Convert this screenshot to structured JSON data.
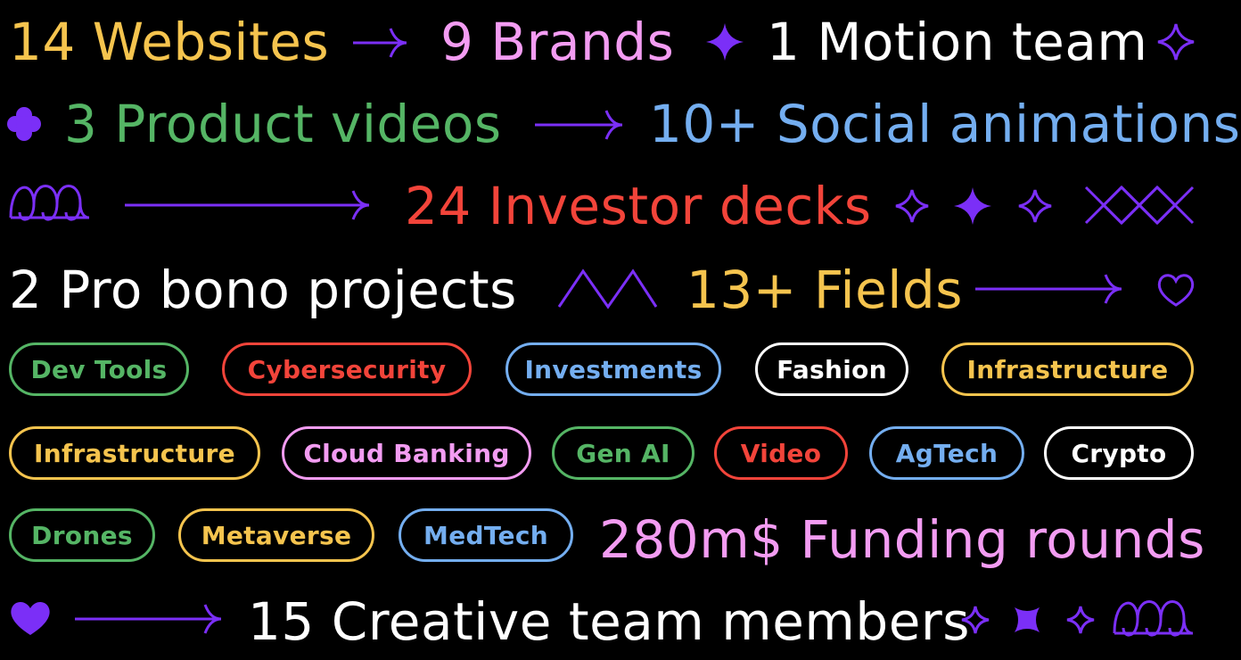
{
  "colors": {
    "purple": "#7b2ff7",
    "yellow": "#f5c44e",
    "pink": "#f39cf2",
    "white": "#ffffff",
    "green": "#55b565",
    "blue": "#74aef0",
    "red": "#f2443a"
  },
  "stats": {
    "websites": "14 Websites",
    "brands": "9 Brands",
    "motion_team": "1 Motion team",
    "product_videos": "3 Product videos",
    "social_animations": "10+ Social animations",
    "investor_decks": "24 Investor decks",
    "pro_bono": "2 Pro bono projects",
    "fields": "13+ Fields",
    "funding": "280m$ Funding rounds",
    "creative_team": "15 Creative team members"
  },
  "tags": {
    "row1": [
      "Dev Tools",
      "Cybersecurity",
      "Investments",
      "Fashion",
      "Infrastructure"
    ],
    "row2": [
      "Infrastructure",
      "Cloud Banking",
      "Gen AI",
      "Video",
      "AgTech",
      "Crypto"
    ],
    "row3": [
      "Drones",
      "Metaverse",
      "MedTech"
    ]
  },
  "icons": [
    "arrow-right-icon",
    "sparkle-icon",
    "sparkle-outline-icon",
    "flower-icon",
    "loops-icon",
    "zigzag-icon",
    "cross-lattice-icon",
    "heart-outline-icon",
    "heart-icon",
    "x-star-icon"
  ]
}
